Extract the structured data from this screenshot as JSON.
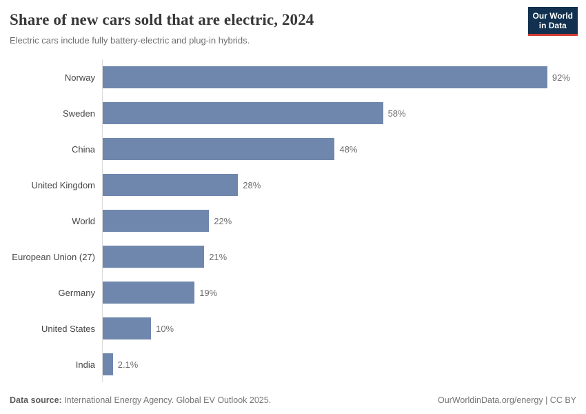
{
  "header": {
    "title": "Share of new cars sold that are electric, 2024",
    "subtitle": "Electric cars include fully battery-electric and plug-in hybrids.",
    "logo": {
      "line1": "Our World",
      "line2": "in Data"
    }
  },
  "chart_data": {
    "type": "bar",
    "orientation": "horizontal",
    "title": "Share of new cars sold that are electric, 2024",
    "subtitle": "Electric cars include fully battery-electric and plug-in hybrids.",
    "categories": [
      "Norway",
      "Sweden",
      "China",
      "United Kingdom",
      "World",
      "European Union (27)",
      "Germany",
      "United States",
      "India"
    ],
    "values": [
      92,
      58,
      48,
      28,
      22,
      21,
      19,
      10,
      2.1
    ],
    "value_labels": [
      "92%",
      "58%",
      "48%",
      "28%",
      "22%",
      "21%",
      "19%",
      "10%",
      "2.1%"
    ],
    "unit": "%",
    "xlim": [
      0,
      100
    ],
    "grid": false,
    "legend": "none",
    "bar_color": "#7087ad",
    "axis_line_color": "#dcdcdc"
  },
  "footer": {
    "source_label": "Data source:",
    "source_text": " International Energy Agency. Global EV Outlook 2025.",
    "right_text": "OurWorldinData.org/energy | CC BY"
  },
  "colors": {
    "bar": "#7087ad",
    "logo_bg": "#12304f",
    "logo_underline": "#d13b31",
    "title_text": "#383838",
    "muted_text": "#6e6e6e"
  }
}
